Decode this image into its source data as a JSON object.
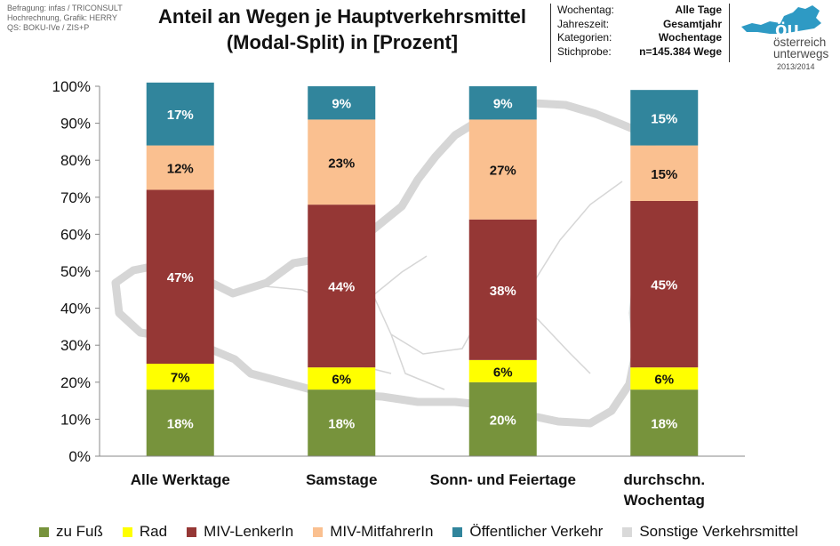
{
  "source_lines": [
    "Befragung: infas / TRICONSULT",
    "Hochrechnung, Grafik: HERRY",
    "QS: BOKU-IVe / ZIS+P"
  ],
  "title_lines": [
    "Anteil an Wegen je Hauptverkehrsmittel",
    "(Modal-Split) in [Prozent]"
  ],
  "info": [
    {
      "label": "Wochentag:",
      "value": "Alle Tage"
    },
    {
      "label": "Jahreszeit:",
      "value": "Gesamtjahr"
    },
    {
      "label": "Kategorien:",
      "value": "Wochentage"
    },
    {
      "label": "Stichprobe:",
      "value": "n=145.384 Wege"
    }
  ],
  "logo": {
    "badge": "öu",
    "line1": "österreich",
    "line2": "unterwegs",
    "year": "2013/2014",
    "color": "#2e9ac4"
  },
  "chart_data": {
    "type": "bar",
    "stacked": true,
    "categories": [
      "Alle Werktage",
      "Samstage",
      "Sonn- und Feiertage",
      "durchschn. Wochentag"
    ],
    "category_lines": [
      [
        "Alle Werktage"
      ],
      [
        "Samstage"
      ],
      [
        "Sonn- und Feiertage"
      ],
      [
        "durchschn.",
        "Wochentag"
      ]
    ],
    "series": [
      {
        "name": "zu Fuß",
        "color": "#77933c",
        "values": [
          18,
          18,
          20,
          18
        ],
        "labels": [
          "18%",
          "18%",
          "20%",
          "18%"
        ],
        "label_color": "#ffffff"
      },
      {
        "name": "Rad",
        "color": "#ffff00",
        "values": [
          7,
          6,
          6,
          6
        ],
        "labels": [
          "7%",
          "6%",
          "6%",
          "6%"
        ],
        "label_color": "#111111"
      },
      {
        "name": "MIV-LenkerIn",
        "color": "#953735",
        "values": [
          47,
          44,
          38,
          45
        ],
        "labels": [
          "47%",
          "44%",
          "38%",
          "45%"
        ],
        "label_color": "#ffffff"
      },
      {
        "name": "MIV-MitfahrerIn",
        "color": "#fac090",
        "values": [
          12,
          23,
          27,
          15
        ],
        "labels": [
          "12%",
          "23%",
          "27%",
          "15%"
        ],
        "label_color": "#111111"
      },
      {
        "name": "Öffentlicher Verkehr",
        "color": "#31859c",
        "values": [
          17,
          9,
          9,
          15
        ],
        "labels": [
          "17%",
          "9%",
          "9%",
          "15%"
        ],
        "label_color": "#ffffff"
      },
      {
        "name": "Sonstige Verkehrsmittel",
        "color": "#d9d9d9",
        "values": [
          0,
          0,
          0,
          0
        ],
        "labels": [
          "",
          "",
          "",
          ""
        ],
        "label_color": "#111111"
      }
    ],
    "y_ticks": [
      "0%",
      "10%",
      "20%",
      "30%",
      "40%",
      "50%",
      "60%",
      "70%",
      "80%",
      "90%",
      "100%"
    ],
    "ylim": [
      0,
      100
    ],
    "legend_position": "bottom",
    "grid": false,
    "background_map_color": "#d6d6d6"
  }
}
